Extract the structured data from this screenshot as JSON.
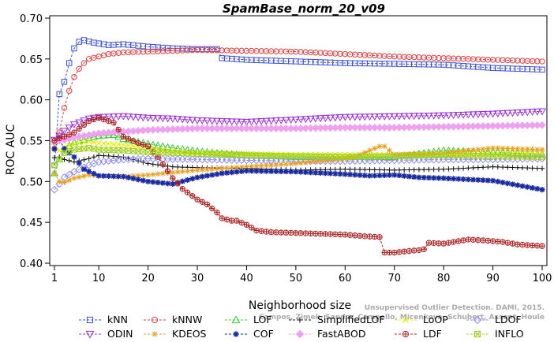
{
  "chart_data": {
    "type": "line",
    "title": "SpamBase_norm_20_v09",
    "xlabel": "Neighborhood size",
    "ylabel": "ROC AUC",
    "xlim": [
      1,
      100
    ],
    "ylim": [
      0.4,
      0.7
    ],
    "x_ticks": [
      1,
      10,
      20,
      30,
      40,
      50,
      60,
      70,
      80,
      90,
      100
    ],
    "y_ticks": [
      "0.40",
      "0.45",
      "0.50",
      "0.55",
      "0.60",
      "0.65",
      "0.70"
    ],
    "grid": false,
    "legend_position": "bottom",
    "watermark": [
      "Unsupervised Outlier Detection. DAMI, 2015.",
      "Campos, Zimek, Sander, Campello, Micenkova, Schubert, Assent, Houle"
    ],
    "series": [
      {
        "name": "kNN",
        "color": "#3a4fd8",
        "marker": "square",
        "points": [
          [
            1,
            0.52
          ],
          [
            2,
            0.607
          ],
          [
            3,
            0.622
          ],
          [
            4,
            0.645
          ],
          [
            5,
            0.663
          ],
          [
            6,
            0.671
          ],
          [
            7,
            0.673
          ],
          [
            9,
            0.67
          ],
          [
            12,
            0.667
          ],
          [
            15,
            0.668
          ],
          [
            20,
            0.665
          ],
          [
            25,
            0.663
          ],
          [
            30,
            0.662
          ],
          [
            34,
            0.662
          ],
          [
            35,
            0.651
          ],
          [
            40,
            0.649
          ],
          [
            50,
            0.647
          ],
          [
            60,
            0.645
          ],
          [
            70,
            0.644
          ],
          [
            80,
            0.643
          ],
          [
            90,
            0.639
          ],
          [
            100,
            0.637
          ]
        ]
      },
      {
        "name": "kNNW",
        "color": "#e83a3a",
        "marker": "circle",
        "points": [
          [
            1,
            0.54
          ],
          [
            2,
            0.56
          ],
          [
            3,
            0.59
          ],
          [
            4,
            0.611
          ],
          [
            5,
            0.628
          ],
          [
            6,
            0.638
          ],
          [
            7,
            0.645
          ],
          [
            8,
            0.65
          ],
          [
            10,
            0.653
          ],
          [
            12,
            0.656
          ],
          [
            15,
            0.658
          ],
          [
            20,
            0.659
          ],
          [
            25,
            0.66
          ],
          [
            30,
            0.661
          ],
          [
            40,
            0.66
          ],
          [
            50,
            0.659
          ],
          [
            60,
            0.656
          ],
          [
            70,
            0.653
          ],
          [
            80,
            0.651
          ],
          [
            90,
            0.649
          ],
          [
            100,
            0.647
          ]
        ]
      },
      {
        "name": "LOF",
        "color": "#33cc33",
        "marker": "triangle",
        "points": [
          [
            1,
            0.51
          ],
          [
            2,
            0.527
          ],
          [
            3,
            0.539
          ],
          [
            5,
            0.548
          ],
          [
            8,
            0.553
          ],
          [
            10,
            0.556
          ],
          [
            13,
            0.557
          ],
          [
            15,
            0.552
          ],
          [
            20,
            0.546
          ],
          [
            25,
            0.541
          ],
          [
            30,
            0.537
          ],
          [
            40,
            0.532
          ],
          [
            50,
            0.53
          ],
          [
            60,
            0.53
          ],
          [
            70,
            0.53
          ],
          [
            80,
            0.538
          ],
          [
            90,
            0.536
          ],
          [
            100,
            0.533
          ]
        ]
      },
      {
        "name": "SimplifiedLOF",
        "color": "#111111",
        "marker": "plus",
        "points": [
          [
            1,
            0.529
          ],
          [
            2,
            0.53
          ],
          [
            3,
            0.527
          ],
          [
            5,
            0.524
          ],
          [
            8,
            0.528
          ],
          [
            10,
            0.532
          ],
          [
            15,
            0.53
          ],
          [
            20,
            0.522
          ],
          [
            25,
            0.518
          ],
          [
            30,
            0.517
          ],
          [
            40,
            0.516
          ],
          [
            50,
            0.514
          ],
          [
            60,
            0.515
          ],
          [
            70,
            0.514
          ],
          [
            80,
            0.515
          ],
          [
            90,
            0.518
          ],
          [
            100,
            0.516
          ]
        ]
      },
      {
        "name": "LoOP",
        "color": "#e8e800",
        "marker": "x",
        "points": [
          [
            1,
            0.543
          ],
          [
            2,
            0.538
          ],
          [
            3,
            0.542
          ],
          [
            5,
            0.546
          ],
          [
            8,
            0.549
          ],
          [
            10,
            0.547
          ],
          [
            15,
            0.545
          ],
          [
            20,
            0.541
          ],
          [
            25,
            0.537
          ],
          [
            30,
            0.535
          ],
          [
            40,
            0.534
          ],
          [
            50,
            0.533
          ],
          [
            60,
            0.533
          ],
          [
            70,
            0.533
          ],
          [
            80,
            0.533
          ],
          [
            90,
            0.534
          ],
          [
            100,
            0.535
          ]
        ]
      },
      {
        "name": "LDOF",
        "color": "#8c8cf0",
        "marker": "diamond",
        "points": [
          [
            1,
            0.49
          ],
          [
            2,
            0.497
          ],
          [
            3,
            0.505
          ],
          [
            5,
            0.512
          ],
          [
            8,
            0.52
          ],
          [
            10,
            0.524
          ],
          [
            15,
            0.527
          ],
          [
            20,
            0.528
          ],
          [
            30,
            0.527
          ],
          [
            40,
            0.526
          ],
          [
            50,
            0.525
          ],
          [
            60,
            0.525
          ],
          [
            70,
            0.526
          ],
          [
            80,
            0.527
          ],
          [
            90,
            0.527
          ],
          [
            100,
            0.528
          ]
        ]
      },
      {
        "name": "ODIN",
        "color": "#9b30e0",
        "marker": "triangle-down",
        "points": [
          [
            1,
            0.551
          ],
          [
            2,
            0.556
          ],
          [
            3,
            0.562
          ],
          [
            5,
            0.57
          ],
          [
            8,
            0.577
          ],
          [
            10,
            0.579
          ],
          [
            15,
            0.58
          ],
          [
            20,
            0.578
          ],
          [
            25,
            0.577
          ],
          [
            30,
            0.575
          ],
          [
            40,
            0.573
          ],
          [
            50,
            0.576
          ],
          [
            60,
            0.579
          ],
          [
            70,
            0.58
          ],
          [
            80,
            0.581
          ],
          [
            90,
            0.583
          ],
          [
            100,
            0.586
          ]
        ]
      },
      {
        "name": "KDEOS",
        "color": "#e8a020",
        "marker": "asterisk",
        "points": [
          [
            1,
            0.51
          ],
          [
            2,
            0.5
          ],
          [
            3,
            0.499
          ],
          [
            5,
            0.504
          ],
          [
            8,
            0.508
          ],
          [
            10,
            0.507
          ],
          [
            15,
            0.506
          ],
          [
            20,
            0.508
          ],
          [
            25,
            0.511
          ],
          [
            30,
            0.514
          ],
          [
            40,
            0.518
          ],
          [
            50,
            0.522
          ],
          [
            60,
            0.528
          ],
          [
            62,
            0.53
          ],
          [
            65,
            0.538
          ],
          [
            67,
            0.543
          ],
          [
            68,
            0.543
          ],
          [
            70,
            0.533
          ],
          [
            80,
            0.535
          ],
          [
            90,
            0.541
          ],
          [
            100,
            0.539
          ]
        ]
      },
      {
        "name": "COF",
        "color": "#1a2aa0",
        "marker": "star",
        "points": [
          [
            1,
            0.54
          ],
          [
            2,
            0.552
          ],
          [
            3,
            0.54
          ],
          [
            5,
            0.53
          ],
          [
            7,
            0.515
          ],
          [
            10,
            0.507
          ],
          [
            15,
            0.506
          ],
          [
            20,
            0.5
          ],
          [
            25,
            0.497
          ],
          [
            30,
            0.505
          ],
          [
            35,
            0.51
          ],
          [
            40,
            0.513
          ],
          [
            50,
            0.512
          ],
          [
            60,
            0.509
          ],
          [
            65,
            0.507
          ],
          [
            70,
            0.508
          ],
          [
            75,
            0.505
          ],
          [
            80,
            0.504
          ],
          [
            90,
            0.501
          ],
          [
            100,
            0.49
          ]
        ]
      },
      {
        "name": "FastABOD",
        "color": "#f0a0f0",
        "marker": "diamond-filled",
        "points": [
          [
            1,
            0.548
          ],
          [
            2,
            0.55
          ],
          [
            3,
            0.551
          ],
          [
            5,
            0.554
          ],
          [
            8,
            0.557
          ],
          [
            10,
            0.559
          ],
          [
            15,
            0.561
          ],
          [
            20,
            0.563
          ],
          [
            30,
            0.565
          ],
          [
            40,
            0.565
          ],
          [
            50,
            0.565
          ],
          [
            60,
            0.566
          ],
          [
            70,
            0.566
          ],
          [
            80,
            0.567
          ],
          [
            90,
            0.568
          ],
          [
            100,
            0.569
          ]
        ]
      },
      {
        "name": "LDF",
        "color": "#b02020",
        "marker": "circle-plus",
        "points": [
          [
            1,
            0.55
          ],
          [
            2,
            0.553
          ],
          [
            3,
            0.555
          ],
          [
            5,
            0.56
          ],
          [
            8,
            0.574
          ],
          [
            10,
            0.578
          ],
          [
            13,
            0.572
          ],
          [
            15,
            0.555
          ],
          [
            18,
            0.547
          ],
          [
            20,
            0.543
          ],
          [
            22,
            0.53
          ],
          [
            25,
            0.504
          ],
          [
            27,
            0.491
          ],
          [
            30,
            0.478
          ],
          [
            32,
            0.472
          ],
          [
            34,
            0.462
          ],
          [
            35,
            0.455
          ],
          [
            37,
            0.452
          ],
          [
            38,
            0.452
          ],
          [
            40,
            0.447
          ],
          [
            42,
            0.44
          ],
          [
            45,
            0.438
          ],
          [
            50,
            0.437
          ],
          [
            55,
            0.436
          ],
          [
            60,
            0.435
          ],
          [
            64,
            0.433
          ],
          [
            67,
            0.432
          ],
          [
            68,
            0.413
          ],
          [
            70,
            0.413
          ],
          [
            73,
            0.415
          ],
          [
            75,
            0.416
          ],
          [
            76,
            0.417
          ],
          [
            77,
            0.425
          ],
          [
            80,
            0.424
          ],
          [
            85,
            0.429
          ],
          [
            88,
            0.428
          ],
          [
            92,
            0.426
          ],
          [
            95,
            0.423
          ],
          [
            100,
            0.421
          ]
        ]
      },
      {
        "name": "INFLO",
        "color": "#a0d020",
        "marker": "square-x",
        "points": [
          [
            1,
            0.52
          ],
          [
            2,
            0.527
          ],
          [
            3,
            0.535
          ],
          [
            5,
            0.539
          ],
          [
            8,
            0.541
          ],
          [
            10,
            0.539
          ],
          [
            15,
            0.538
          ],
          [
            20,
            0.536
          ],
          [
            30,
            0.534
          ],
          [
            40,
            0.532
          ],
          [
            50,
            0.531
          ],
          [
            60,
            0.53
          ],
          [
            70,
            0.531
          ],
          [
            80,
            0.532
          ],
          [
            90,
            0.531
          ],
          [
            100,
            0.53
          ]
        ]
      }
    ],
    "legend_rows": [
      [
        "kNN",
        "kNNW",
        "LOF",
        "SimplifiedLOF",
        "LoOP",
        "LDOF"
      ],
      [
        "ODIN",
        "KDEOS",
        "COF",
        "FastABOD",
        "LDF",
        "INFLO"
      ]
    ]
  }
}
